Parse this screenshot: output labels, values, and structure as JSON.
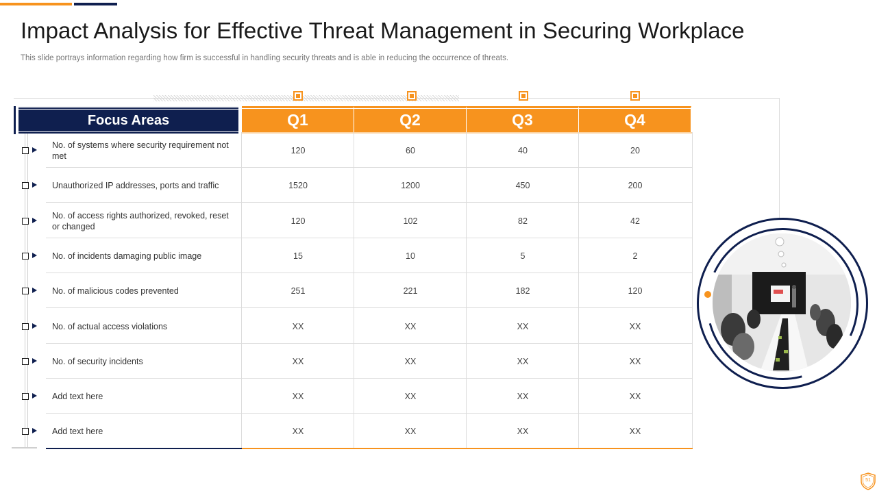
{
  "title": "Impact Analysis for Effective Threat Management in Securing Workplace",
  "subtitle": "This slide portrays information regarding how firm is successful in handling security threats and is able in reducing the occurrence of threats.",
  "table": {
    "focus_header": "Focus Areas",
    "quarters": [
      "Q1",
      "Q2",
      "Q3",
      "Q4"
    ],
    "rows": [
      {
        "label": "No. of systems where security requirement not met",
        "values": [
          "120",
          "60",
          "40",
          "20"
        ]
      },
      {
        "label": "Unauthorized IP addresses, ports and traffic",
        "values": [
          "1520",
          "1200",
          "450",
          "200"
        ]
      },
      {
        "label": "No. of access rights authorized, revoked, reset or changed",
        "values": [
          "120",
          "102",
          "82",
          "42"
        ]
      },
      {
        "label": "No. of incidents damaging public image",
        "values": [
          "15",
          "10",
          "5",
          "2"
        ]
      },
      {
        "label": "No. of malicious codes prevented",
        "values": [
          "251",
          "221",
          "182",
          "120"
        ]
      },
      {
        "label": "No. of actual access violations",
        "values": [
          "XX",
          "XX",
          "XX",
          "XX"
        ]
      },
      {
        "label": "No. of security incidents",
        "values": [
          "XX",
          "XX",
          "XX",
          "XX"
        ]
      },
      {
        "label": "Add text here",
        "values": [
          "XX",
          "XX",
          "XX",
          "XX"
        ]
      },
      {
        "label": "Add text here",
        "values": [
          "XX",
          "XX",
          "XX",
          "XX"
        ]
      }
    ]
  },
  "page_number": "51",
  "colors": {
    "navy": "#0f1f4f",
    "orange": "#f7931e"
  }
}
